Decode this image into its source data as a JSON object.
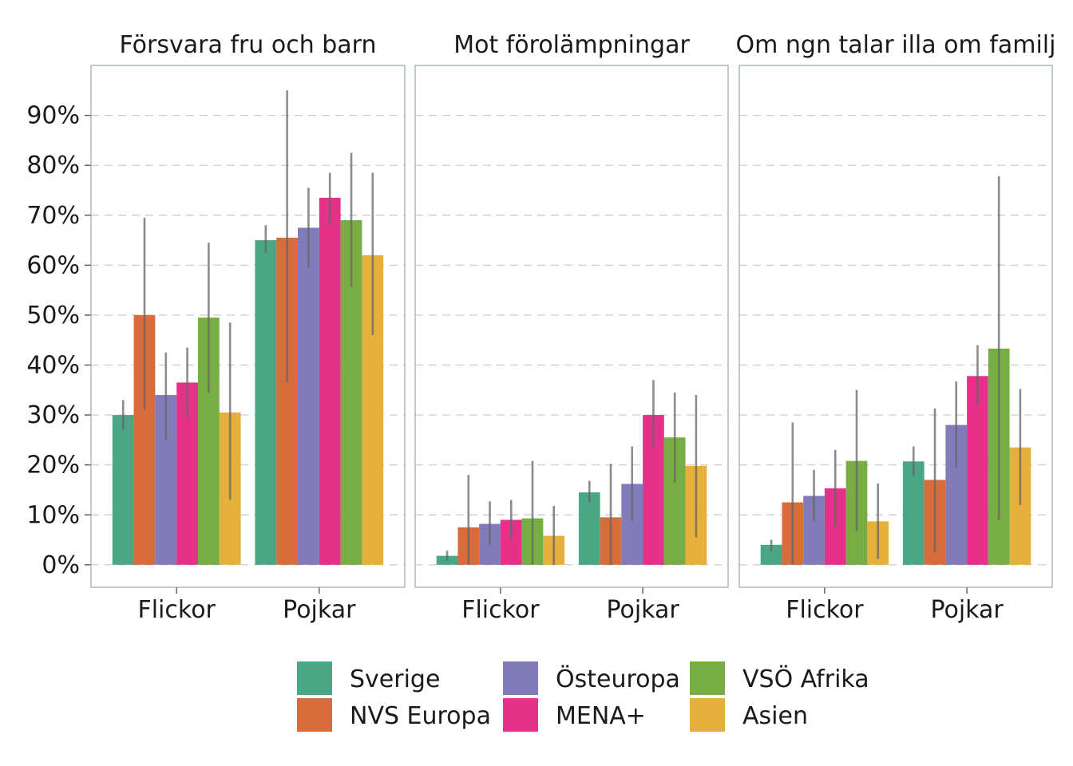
{
  "chart_data": {
    "type": "bar",
    "layout": "faceted",
    "facets": [
      "Försvara fru och barn",
      "Mot förolämpningar",
      "Om ngn talar illa om familj"
    ],
    "categories": [
      "Flickor",
      "Pojkar"
    ],
    "y_ticks": [
      "0%",
      "10%",
      "20%",
      "30%",
      "40%",
      "50%",
      "60%",
      "70%",
      "80%",
      "90%"
    ],
    "ylim": [
      -0.045,
      1.0
    ],
    "grid": true,
    "legend_position": "bottom",
    "series": [
      {
        "name": "Sverige",
        "color": "#4aa785"
      },
      {
        "name": "NVS Europa",
        "color": "#d86c3a"
      },
      {
        "name": "Östeuropa",
        "color": "#827bb9"
      },
      {
        "name": "MENA+",
        "color": "#e5318a"
      },
      {
        "name": "VSÖ Afrika",
        "color": "#78ad43"
      },
      {
        "name": "Asien",
        "color": "#e5b03b"
      }
    ],
    "panels": [
      {
        "facet": "Försvara fru och barn",
        "values": [
          [
            0.3,
            0.5,
            0.34,
            0.365,
            0.495,
            0.305
          ],
          [
            0.65,
            0.655,
            0.675,
            0.735,
            0.69,
            0.62
          ]
        ],
        "err_low": [
          [
            0.27,
            0.31,
            0.25,
            0.295,
            0.345,
            0.13
          ],
          [
            0.625,
            0.365,
            0.595,
            0.68,
            0.555,
            0.46
          ]
        ],
        "err_high": [
          [
            0.33,
            0.695,
            0.425,
            0.435,
            0.645,
            0.485
          ],
          [
            0.68,
            0.95,
            0.755,
            0.785,
            0.825,
            0.785
          ]
        ]
      },
      {
        "facet": "Mot förolämpningar",
        "values": [
          [
            0.018,
            0.075,
            0.082,
            0.09,
            0.093,
            0.058
          ],
          [
            0.145,
            0.095,
            0.162,
            0.3,
            0.255,
            0.198
          ]
        ],
        "err_low": [
          [
            0.008,
            0.0,
            0.04,
            0.05,
            0.0,
            0.0
          ],
          [
            0.125,
            0.0,
            0.088,
            0.235,
            0.165,
            0.055
          ]
        ],
        "err_high": [
          [
            0.028,
            0.18,
            0.127,
            0.13,
            0.208,
            0.118
          ],
          [
            0.168,
            0.202,
            0.237,
            0.37,
            0.345,
            0.34
          ]
        ]
      },
      {
        "facet": "Om ngn talar illa om familj",
        "values": [
          [
            0.04,
            0.125,
            0.138,
            0.153,
            0.208,
            0.087
          ],
          [
            0.207,
            0.17,
            0.28,
            0.378,
            0.433,
            0.235
          ]
        ],
        "err_low": [
          [
            0.027,
            0.0,
            0.087,
            0.075,
            0.068,
            0.012
          ],
          [
            0.178,
            0.025,
            0.195,
            0.32,
            0.09,
            0.12
          ]
        ],
        "err_high": [
          [
            0.05,
            0.285,
            0.19,
            0.23,
            0.35,
            0.163
          ],
          [
            0.237,
            0.313,
            0.367,
            0.44,
            0.778,
            0.352
          ]
        ]
      }
    ]
  }
}
